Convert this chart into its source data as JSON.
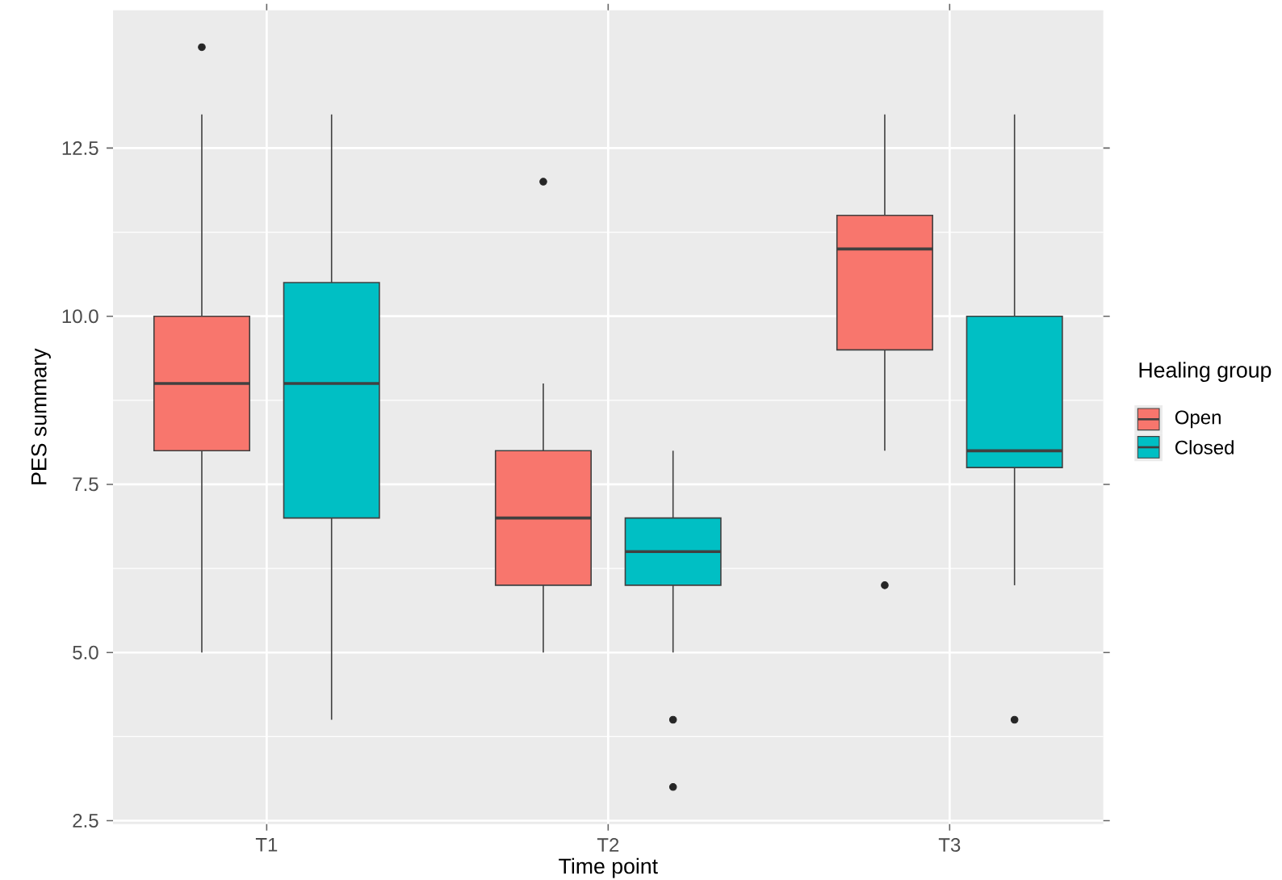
{
  "chart_data": {
    "type": "box",
    "xlabel": "Time point",
    "ylabel": "PES summary",
    "legend_title": "Healing group",
    "categories": [
      "T1",
      "T2",
      "T3"
    ],
    "ylim": [
      2.45,
      14.55
    ],
    "yticks": [
      {
        "value": 2.5,
        "label": "2.5"
      },
      {
        "value": 5,
        "label": "5.0"
      },
      {
        "value": 7.5,
        "label": "7.5"
      },
      {
        "value": 10,
        "label": "10.0"
      },
      {
        "value": 12.5,
        "label": "12.5"
      }
    ],
    "grid": true,
    "legend": "right",
    "series": [
      {
        "name": "Open",
        "color": "#f8766d",
        "boxes": [
          {
            "low": 5,
            "q1": 8,
            "median": 9,
            "q3": 10,
            "high": 13,
            "outliers": [
              14
            ]
          },
          {
            "low": 5,
            "q1": 6,
            "median": 7,
            "q3": 8,
            "high": 9,
            "outliers": [
              12
            ]
          },
          {
            "low": 8,
            "q1": 9.5,
            "median": 11,
            "q3": 11.5,
            "high": 13,
            "outliers": [
              6
            ]
          }
        ]
      },
      {
        "name": "Closed",
        "color": "#00bfc4",
        "boxes": [
          {
            "low": 4,
            "q1": 7,
            "median": 9,
            "q3": 10.5,
            "high": 13
          },
          {
            "low": 5,
            "q1": 6,
            "median": 6.5,
            "q3": 7,
            "high": 8,
            "outliers": [
              4,
              3
            ]
          },
          {
            "low": 6,
            "q1": 7.75,
            "median": 8,
            "q3": 10,
            "high": 13,
            "outliers": [
              4
            ]
          }
        ]
      }
    ]
  }
}
